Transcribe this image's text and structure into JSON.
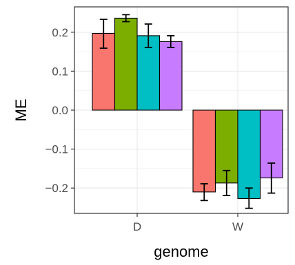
{
  "chart_data": {
    "type": "bar",
    "xlabel": "genome",
    "ylabel": "ME",
    "categories": [
      "D",
      "W"
    ],
    "ylim": [
      -0.265,
      0.265
    ],
    "yticks": [
      0.2,
      0.1,
      0.0,
      -0.1,
      -0.2
    ],
    "ytick_labels": [
      "0.2",
      "0.1",
      "0.0",
      "−0.1",
      "−0.2"
    ],
    "grid": true,
    "legend": "none",
    "bar_colors": [
      "#F8766D",
      "#7CAE00",
      "#00BFC4",
      "#C77CFF"
    ],
    "series": [
      {
        "values": [
          0.197,
          -0.21
        ],
        "err_low": [
          0.159,
          -0.232
        ],
        "err_high": [
          0.233,
          -0.189
        ]
      },
      {
        "values": [
          0.236,
          -0.187
        ],
        "err_low": [
          0.227,
          -0.219
        ],
        "err_high": [
          0.245,
          -0.155
        ]
      },
      {
        "values": [
          0.191,
          -0.227
        ],
        "err_low": [
          0.161,
          -0.252
        ],
        "err_high": [
          0.221,
          -0.2
        ]
      },
      {
        "values": [
          0.176,
          -0.174
        ],
        "err_low": [
          0.161,
          -0.213
        ],
        "err_high": [
          0.191,
          -0.136
        ]
      }
    ]
  }
}
